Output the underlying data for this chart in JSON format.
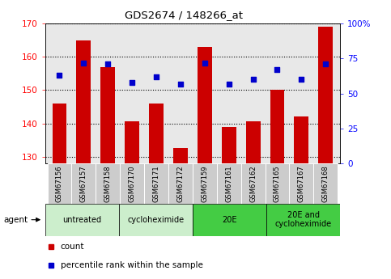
{
  "title": "GDS2674 / 148266_at",
  "samples": [
    "GSM67156",
    "GSM67157",
    "GSM67158",
    "GSM67170",
    "GSM67171",
    "GSM67172",
    "GSM67159",
    "GSM67161",
    "GSM67162",
    "GSM67165",
    "GSM67167",
    "GSM67168"
  ],
  "count_values": [
    146,
    165,
    157,
    140.5,
    146,
    132.5,
    163,
    139,
    140.5,
    150,
    142,
    169
  ],
  "percentile_values": [
    63,
    72,
    71,
    58,
    62,
    57,
    72,
    57,
    60,
    67,
    60,
    71
  ],
  "ylim_left": [
    128,
    170
  ],
  "ylim_right": [
    0,
    100
  ],
  "yticks_left": [
    130,
    140,
    150,
    160,
    170
  ],
  "yticks_right": [
    0,
    25,
    50,
    75,
    100
  ],
  "ytick_right_labels": [
    "0",
    "25",
    "50",
    "75",
    "100%"
  ],
  "groups": [
    {
      "label": "untreated",
      "start": 0,
      "end": 3,
      "color": "#cceecc"
    },
    {
      "label": "cycloheximide",
      "start": 3,
      "end": 6,
      "color": "#cceecc"
    },
    {
      "label": "20E",
      "start": 6,
      "end": 9,
      "color": "#44cc44"
    },
    {
      "label": "20E and\ncycloheximide",
      "start": 9,
      "end": 12,
      "color": "#44cc44"
    }
  ],
  "bar_color": "#cc0000",
  "dot_color": "#0000cc",
  "background_color": "#ffffff",
  "plot_bg_color": "#e8e8e8",
  "sample_bg_color": "#cccccc",
  "agent_label": "agent",
  "legend_count": "count",
  "legend_percentile": "percentile rank within the sample"
}
